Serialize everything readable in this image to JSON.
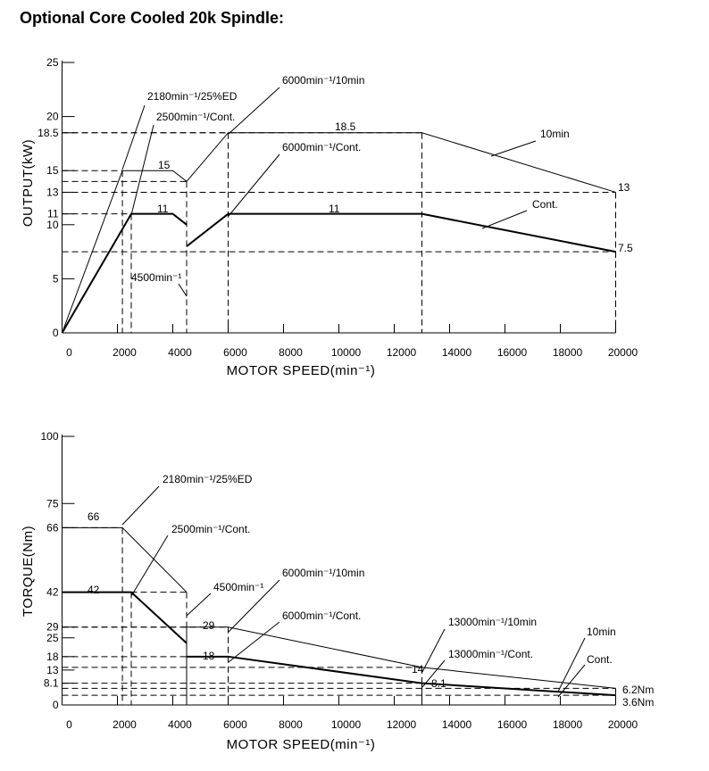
{
  "title": "Optional Core Cooled 20k Spindle:",
  "chart_data": [
    {
      "type": "line",
      "x_label": "MOTOR SPEED(min⁻¹)",
      "y_label": "OUTPUT(kW)",
      "xlim": [
        0,
        20000
      ],
      "ylim": [
        0,
        25
      ],
      "xticks": [
        0,
        2000,
        4000,
        6000,
        8000,
        10000,
        12000,
        14000,
        16000,
        18000,
        20000
      ],
      "yticks": [
        0,
        5,
        10,
        11,
        13,
        15,
        18.5,
        20,
        25
      ],
      "series": [
        {
          "name": "10min",
          "color": "#000000",
          "x": [
            0,
            2180,
            4000,
            4500,
            6000,
            13000,
            20000
          ],
          "values": [
            0,
            15,
            15,
            14,
            18.5,
            18.5,
            13
          ]
        },
        {
          "name": "Cont.",
          "color": "#000000",
          "x": [
            0,
            2500,
            4000,
            4500,
            4500,
            4500,
            6000,
            13000,
            20000
          ],
          "values": [
            0,
            11,
            11,
            10,
            null,
            8,
            11,
            11,
            7.5
          ]
        }
      ],
      "annotations": [
        "2180min⁻¹/25%ED",
        "2500min⁻¹/Cont.",
        "6000min⁻¹/10min",
        "6000min⁻¹/Cont.",
        "4500min⁻¹"
      ]
    },
    {
      "type": "line",
      "x_label": "MOTOR SPEED(min⁻¹)",
      "y_label": "TORQUE(Nm)",
      "xlim": [
        0,
        20000
      ],
      "ylim": [
        0,
        100
      ],
      "xticks": [
        0,
        2000,
        4000,
        6000,
        8000,
        10000,
        12000,
        14000,
        16000,
        18000,
        20000
      ],
      "yticks": [
        0,
        8.1,
        13,
        18,
        25,
        29,
        42,
        66,
        75,
        100
      ],
      "series": [
        {
          "name": "10min",
          "color": "#000000",
          "x": [
            0,
            2180,
            4500,
            4500,
            4500,
            6000,
            13000,
            20000
          ],
          "values": [
            66,
            66,
            42,
            null,
            29,
            29,
            14,
            6.2
          ],
          "value_labels": [
            null,
            null,
            null,
            null,
            null,
            null,
            null,
            "6.2Nm"
          ]
        },
        {
          "name": "Cont.",
          "color": "#000000",
          "x": [
            0,
            2500,
            4500,
            4500,
            4500,
            6000,
            13000,
            20000
          ],
          "values": [
            42,
            42,
            23,
            null,
            18,
            18,
            8.1,
            3.6
          ],
          "value_labels": [
            null,
            null,
            null,
            null,
            null,
            null,
            null,
            "3.6Nm"
          ]
        }
      ],
      "annotations": [
        "2180min⁻¹/25%ED",
        "2500min⁻¹/Cont.",
        "4500min⁻¹",
        "6000min⁻¹/10min",
        "6000min⁻¹/Cont.",
        "13000min⁻¹/10min",
        "13000min⁻¹/Cont."
      ]
    }
  ]
}
